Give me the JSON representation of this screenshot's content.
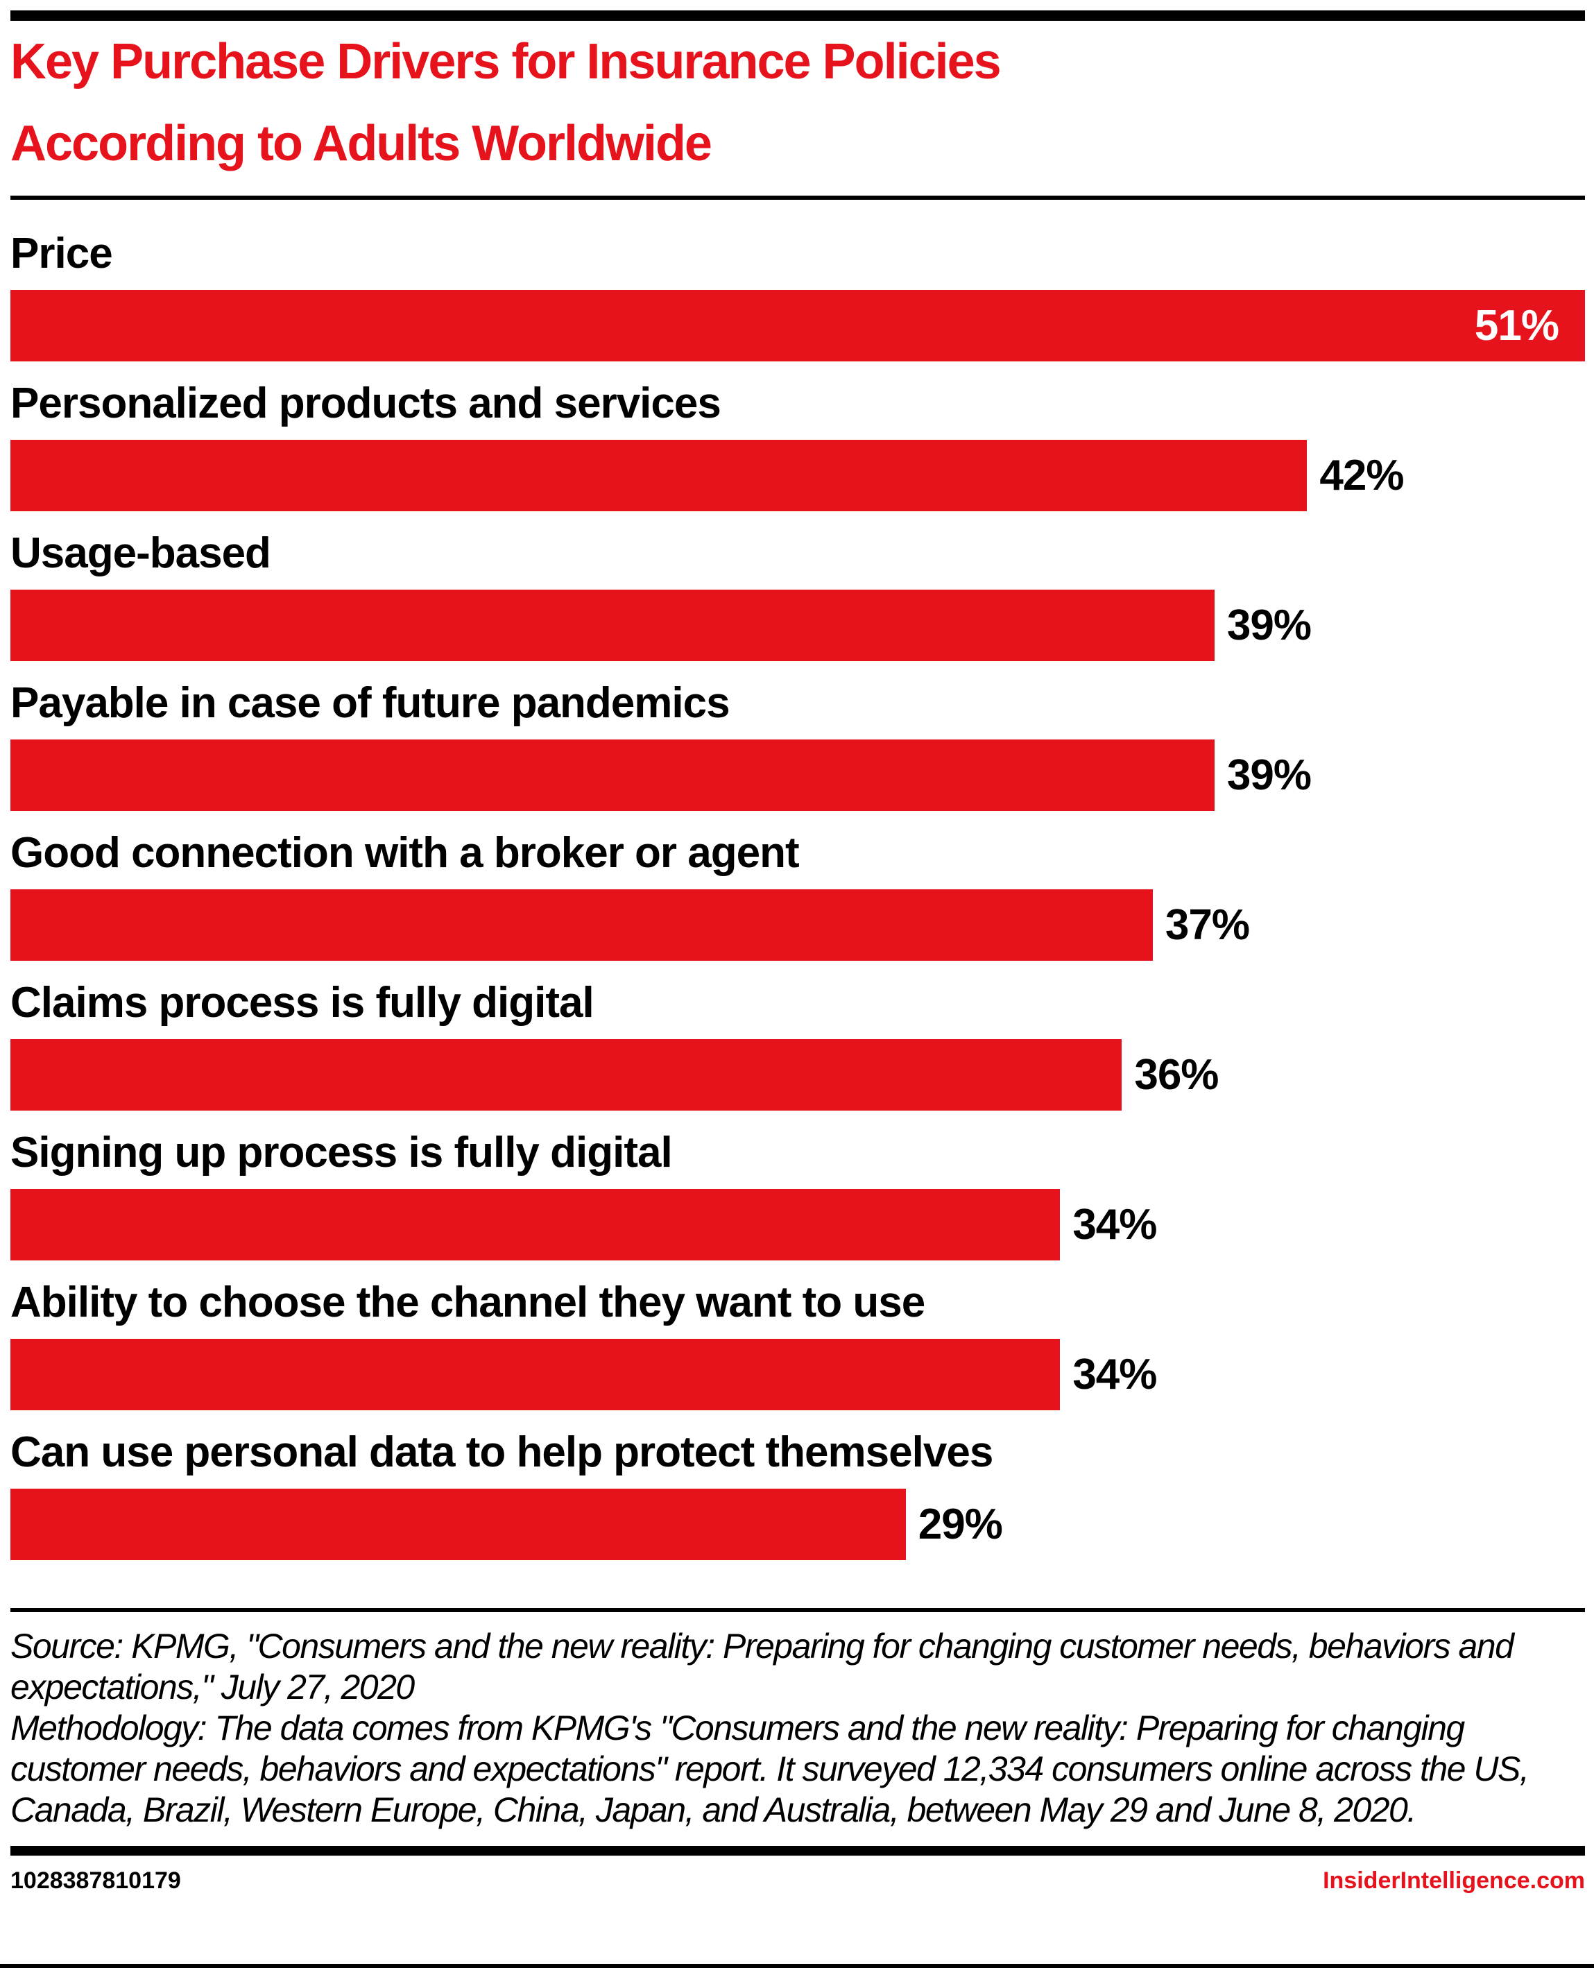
{
  "header": {
    "title_line1": "Key Purchase Drivers for Insurance Policies",
    "title_line2": "According to Adults Worldwide"
  },
  "chart_data": {
    "type": "bar",
    "orientation": "horizontal",
    "title": "Key Purchase Drivers for Insurance Policies According to Adults Worldwide",
    "categories": [
      "Price",
      "Personalized products and services",
      "Usage-based",
      "Payable in case of future pandemics",
      "Good connection with a broker or agent",
      "Claims process is fully digital",
      "Signing up process is fully digital",
      "Ability to choose the channel they want to use",
      "Can use personal data to help protect themselves"
    ],
    "values": [
      51,
      42,
      39,
      39,
      37,
      36,
      34,
      34,
      29
    ],
    "value_suffix": "%",
    "xmax": 51,
    "bar_color": "#e6121c",
    "first_value_inside": true,
    "grid": false,
    "legend": false
  },
  "source": {
    "source_line": "Source: KPMG, \"Consumers and the new reality: Preparing for changing customer needs, behaviors and expectations,\" July 27, 2020",
    "methodology_line": "Methodology: The data comes from KPMG's \"Consumers and the new reality: Preparing for changing customer needs, behaviors and expectations\" report. It surveyed 12,334 consumers online across the US, Canada, Brazil, Western Europe, China, Japan, and Australia, between May 29 and June 8, 2020."
  },
  "footer": {
    "chart_id": "1028387810179",
    "website": "InsiderIntelligence.com"
  },
  "colors": {
    "accent_red": "#e6121c",
    "black": "#000000",
    "background": "#ffffff",
    "bar_inside_label": "#ffffff"
  }
}
